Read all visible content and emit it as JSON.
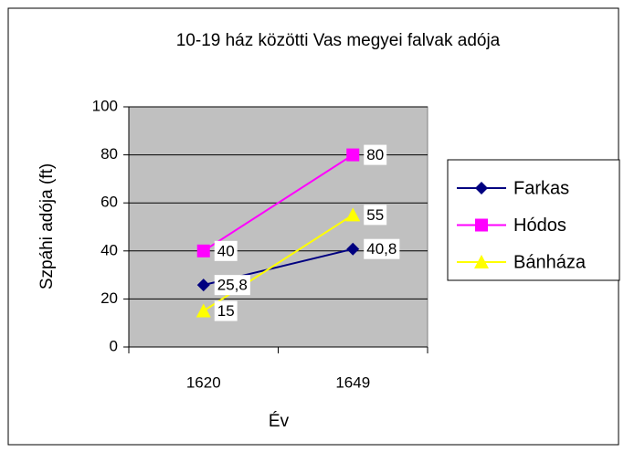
{
  "chart_data": {
    "type": "line",
    "title": "10-19 ház közötti Vas megyei falvak adója",
    "x_label": "Év",
    "y_label": "Szpáhi adója (ft)",
    "categories": [
      "1620",
      "1649"
    ],
    "series": [
      {
        "name": "Farkas",
        "color": "#000080",
        "marker": "diamond",
        "values": [
          25.8,
          40.8
        ],
        "value_labels": [
          "25,8",
          "40,8"
        ]
      },
      {
        "name": "Hódos",
        "color": "#FF00FF",
        "marker": "square",
        "values": [
          40,
          80
        ]
      },
      {
        "name": "Bánháza",
        "color": "#FFFF00",
        "marker": "triangle",
        "values": [
          15,
          55
        ]
      }
    ],
    "ylim": [
      0,
      100
    ],
    "yticks": [
      0,
      20,
      40,
      60,
      80,
      100
    ],
    "grid": true,
    "legend": "right",
    "plot_background": "#C0C0C0"
  }
}
